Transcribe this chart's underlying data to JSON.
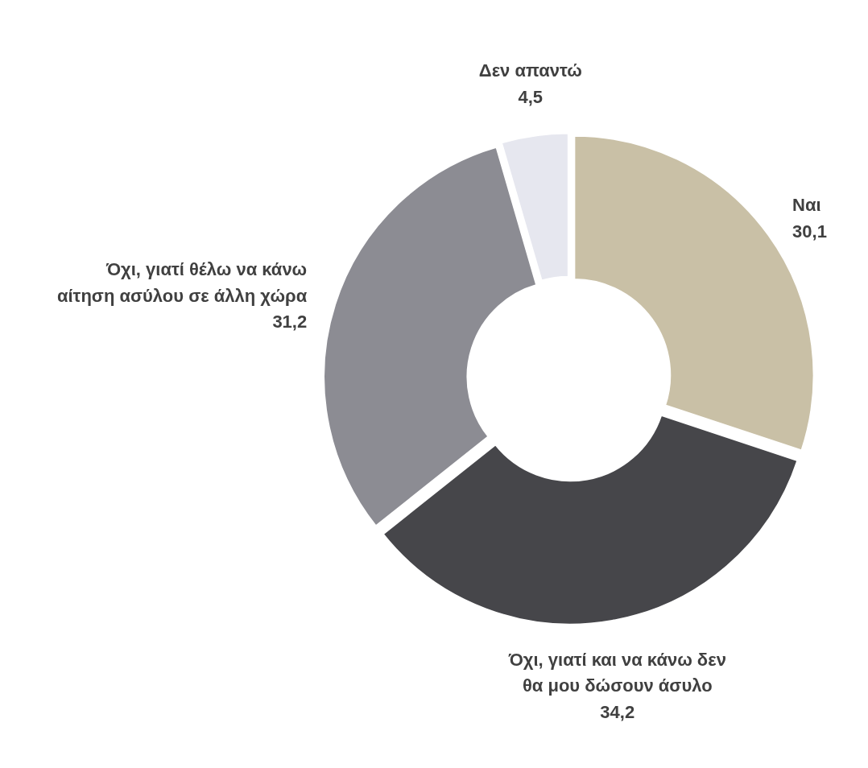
{
  "chart_data": {
    "type": "donut",
    "categories": [
      "Ναι",
      "Όχι, γιατί και να κάνω δεν θα μου δώσουν άσυλο",
      "Όχι, γιατί θέλω να κάνω αίτηση ασύλου σε άλλη χώρα",
      "Δεν απαντώ"
    ],
    "values": [
      30.1,
      34.2,
      31.2,
      4.5
    ],
    "value_labels": [
      "30,1",
      "34,2",
      "31,2",
      "4,5"
    ],
    "colors": [
      "#c9c0a6",
      "#46464a",
      "#8c8c93",
      "#e6e7ef"
    ]
  }
}
